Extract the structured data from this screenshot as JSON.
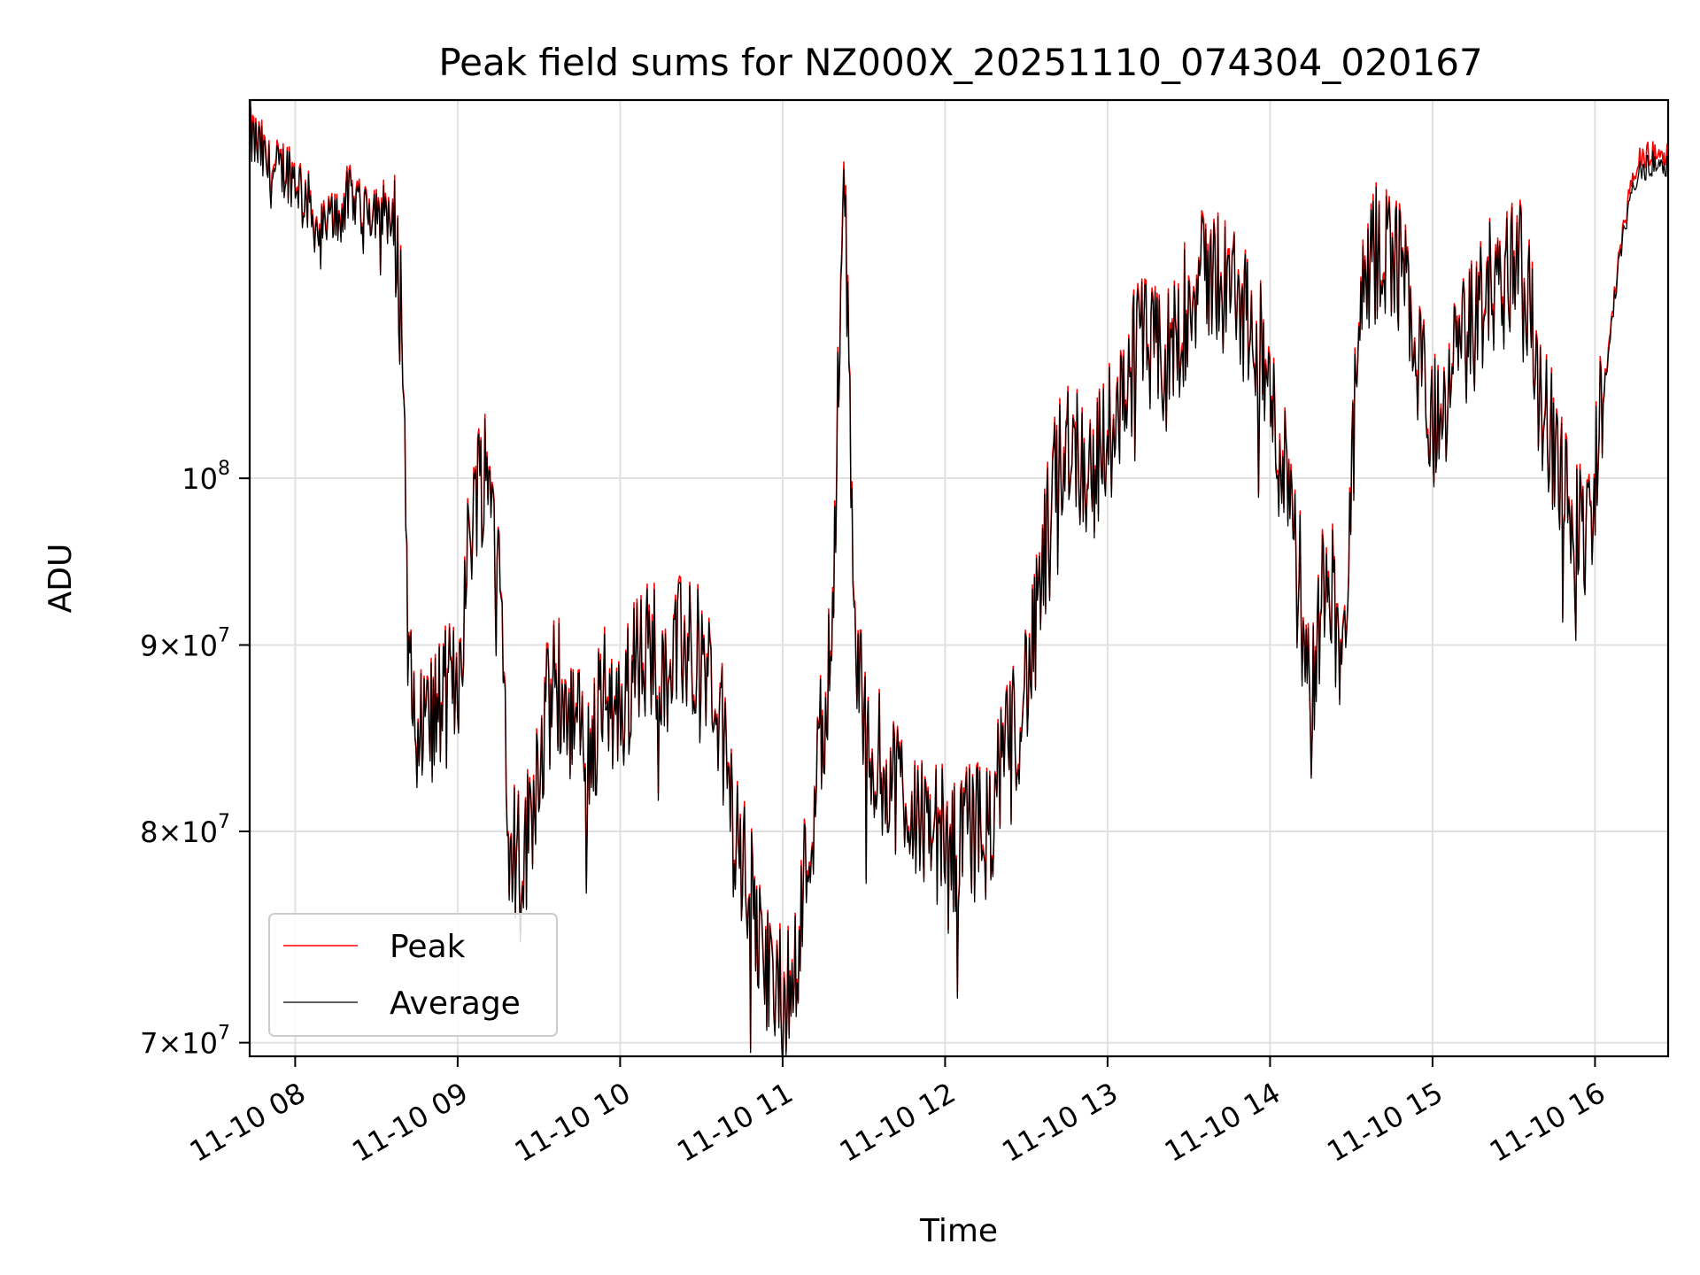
{
  "chart_data": {
    "type": "line",
    "title": "Peak field sums for NZ000X_20251110_074304_020167",
    "xlabel": "Time",
    "ylabel": "ADU",
    "yscale": "log",
    "xlim": [
      7.72,
      16.45
    ],
    "ylim": [
      69400000,
      127000000
    ],
    "grid": true,
    "x_ticks": [
      {
        "value": 8,
        "label": "11-10 08"
      },
      {
        "value": 9,
        "label": "11-10 09"
      },
      {
        "value": 10,
        "label": "11-10 10"
      },
      {
        "value": 11,
        "label": "11-10 11"
      },
      {
        "value": 12,
        "label": "11-10 12"
      },
      {
        "value": 13,
        "label": "11-10 13"
      },
      {
        "value": 14,
        "label": "11-10 14"
      },
      {
        "value": 15,
        "label": "11-10 15"
      },
      {
        "value": 16,
        "label": "11-10 16"
      }
    ],
    "y_ticks": [
      {
        "value": 70000000,
        "mantissa": "7",
        "exp": "7"
      },
      {
        "value": 80000000,
        "mantissa": "8",
        "exp": "7"
      },
      {
        "value": 90000000,
        "mantissa": "9",
        "exp": "7"
      },
      {
        "value": 100000000,
        "mantissa": "",
        "exp": "8"
      }
    ],
    "y_tick_base": "10",
    "y_tick_times": "×",
    "legend": {
      "position": "lower-left",
      "entries": [
        "Peak",
        "Average"
      ]
    },
    "series": [
      {
        "name": "Peak",
        "color": "#ff0000"
      },
      {
        "name": "Average",
        "color": "#000000"
      }
    ],
    "x": [
      7.72,
      7.78,
      7.85,
      7.95,
      8.05,
      8.15,
      8.25,
      8.35,
      8.45,
      8.55,
      8.62,
      8.66,
      8.7,
      8.75,
      8.85,
      9.0,
      9.1,
      9.18,
      9.25,
      9.32,
      9.4,
      9.5,
      9.6,
      9.7,
      9.8,
      9.9,
      10.0,
      10.1,
      10.2,
      10.3,
      10.4,
      10.5,
      10.6,
      10.7,
      10.8,
      10.9,
      11.0,
      11.1,
      11.2,
      11.3,
      11.38,
      11.45,
      11.55,
      11.65,
      11.75,
      11.85,
      11.95,
      12.05,
      12.15,
      12.25,
      12.35,
      12.45,
      12.55,
      12.65,
      12.75,
      12.9,
      13.05,
      13.2,
      13.35,
      13.5,
      13.65,
      13.8,
      13.95,
      14.05,
      14.15,
      14.25,
      14.35,
      14.45,
      14.55,
      14.65,
      14.75,
      14.85,
      14.95,
      15.05,
      15.15,
      15.25,
      15.35,
      15.45,
      15.55,
      15.65,
      15.75,
      15.85,
      15.95,
      16.05,
      16.15,
      16.25,
      16.35,
      16.45
    ],
    "avg": [
      124000000,
      123000000,
      121000000,
      121500000,
      120000000,
      116500000,
      118000000,
      119500000,
      118500000,
      119000000,
      116000000,
      110000000,
      88000000,
      85000000,
      86000000,
      88000000,
      99000000,
      101000000,
      96000000,
      80000000,
      78000000,
      84000000,
      88000000,
      86000000,
      84000000,
      87000000,
      86000000,
      89000000,
      90000000,
      89000000,
      90000000,
      89000000,
      87000000,
      80000000,
      77000000,
      73000000,
      72000000,
      75000000,
      82000000,
      90000000,
      119000000,
      89000000,
      84000000,
      83000000,
      82000000,
      81000000,
      80000000,
      79000000,
      80000000,
      80000000,
      83000000,
      86000000,
      90000000,
      98000000,
      103000000,
      100000000,
      104000000,
      109000000,
      107000000,
      112000000,
      114000000,
      112000000,
      108000000,
      102000000,
      99000000,
      86000000,
      96000000,
      88000000,
      110000000,
      115000000,
      116000000,
      112000000,
      106000000,
      102000000,
      108000000,
      110000000,
      113000000,
      113000000,
      117000000,
      106000000,
      102000000,
      97000000,
      96000000,
      105000000,
      115000000,
      121000000,
      122000000,
      122000000
    ],
    "peak_offset": [
      600000,
      400000,
      500000,
      300000,
      300000,
      300000,
      400000,
      300000,
      300000,
      300000,
      300000,
      200000,
      200000,
      200000,
      200000,
      200000,
      300000,
      300000,
      200000,
      200000,
      200000,
      200000,
      300000,
      200000,
      200000,
      300000,
      200000,
      300000,
      300000,
      300000,
      300000,
      200000,
      200000,
      200000,
      200000,
      200000,
      200000,
      200000,
      200000,
      300000,
      600000,
      300000,
      200000,
      200000,
      200000,
      200000,
      200000,
      200000,
      200000,
      200000,
      200000,
      200000,
      200000,
      300000,
      300000,
      300000,
      300000,
      300000,
      300000,
      400000,
      400000,
      300000,
      300000,
      300000,
      300000,
      200000,
      300000,
      200000,
      400000,
      400000,
      400000,
      300000,
      300000,
      300000,
      300000,
      300000,
      400000,
      400000,
      400000,
      300000,
      300000,
      300000,
      300000,
      300000,
      400000,
      900000,
      900000,
      1000000
    ],
    "noise_amplitude": 0.045
  }
}
